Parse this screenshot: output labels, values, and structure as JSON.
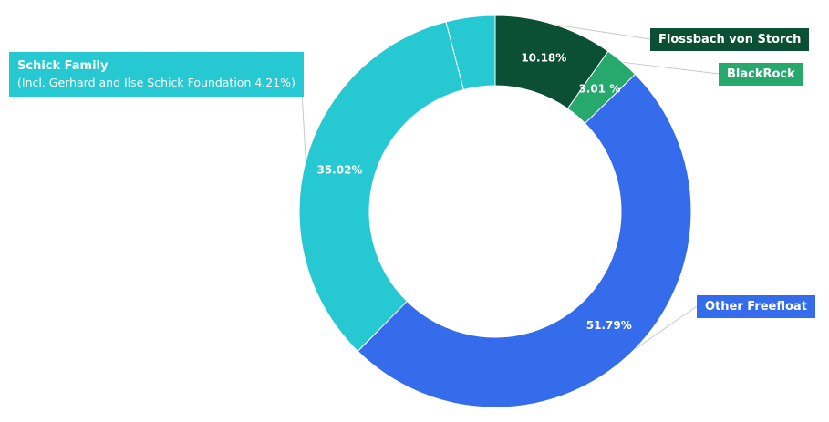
{
  "chart_data": {
    "type": "pie",
    "style": "donut",
    "categories": [
      "Flossbach von Storch",
      "BlackRock",
      "Other Freefloat",
      "Schick Family",
      "Gerhard and Ilse Schick Foundation"
    ],
    "values": [
      10.18,
      3.01,
      51.79,
      35.02,
      4.21
    ],
    "slice_labels": [
      "10.18%",
      "3.01 %",
      "51.79%",
      "35.02%",
      ""
    ],
    "colors": [
      "#0b4f34",
      "#27a86d",
      "#356cec",
      "#26c8d1",
      "#26c8d1"
    ],
    "legend": {
      "flossbach": "Flossbach von Storch",
      "blackrock": "BlackRock",
      "other": "Other Freefloat",
      "schick_title": "Schick Family",
      "schick_sub": "(Incl. Gerhard and Ilse Schick Foundation 4.21%)"
    }
  }
}
